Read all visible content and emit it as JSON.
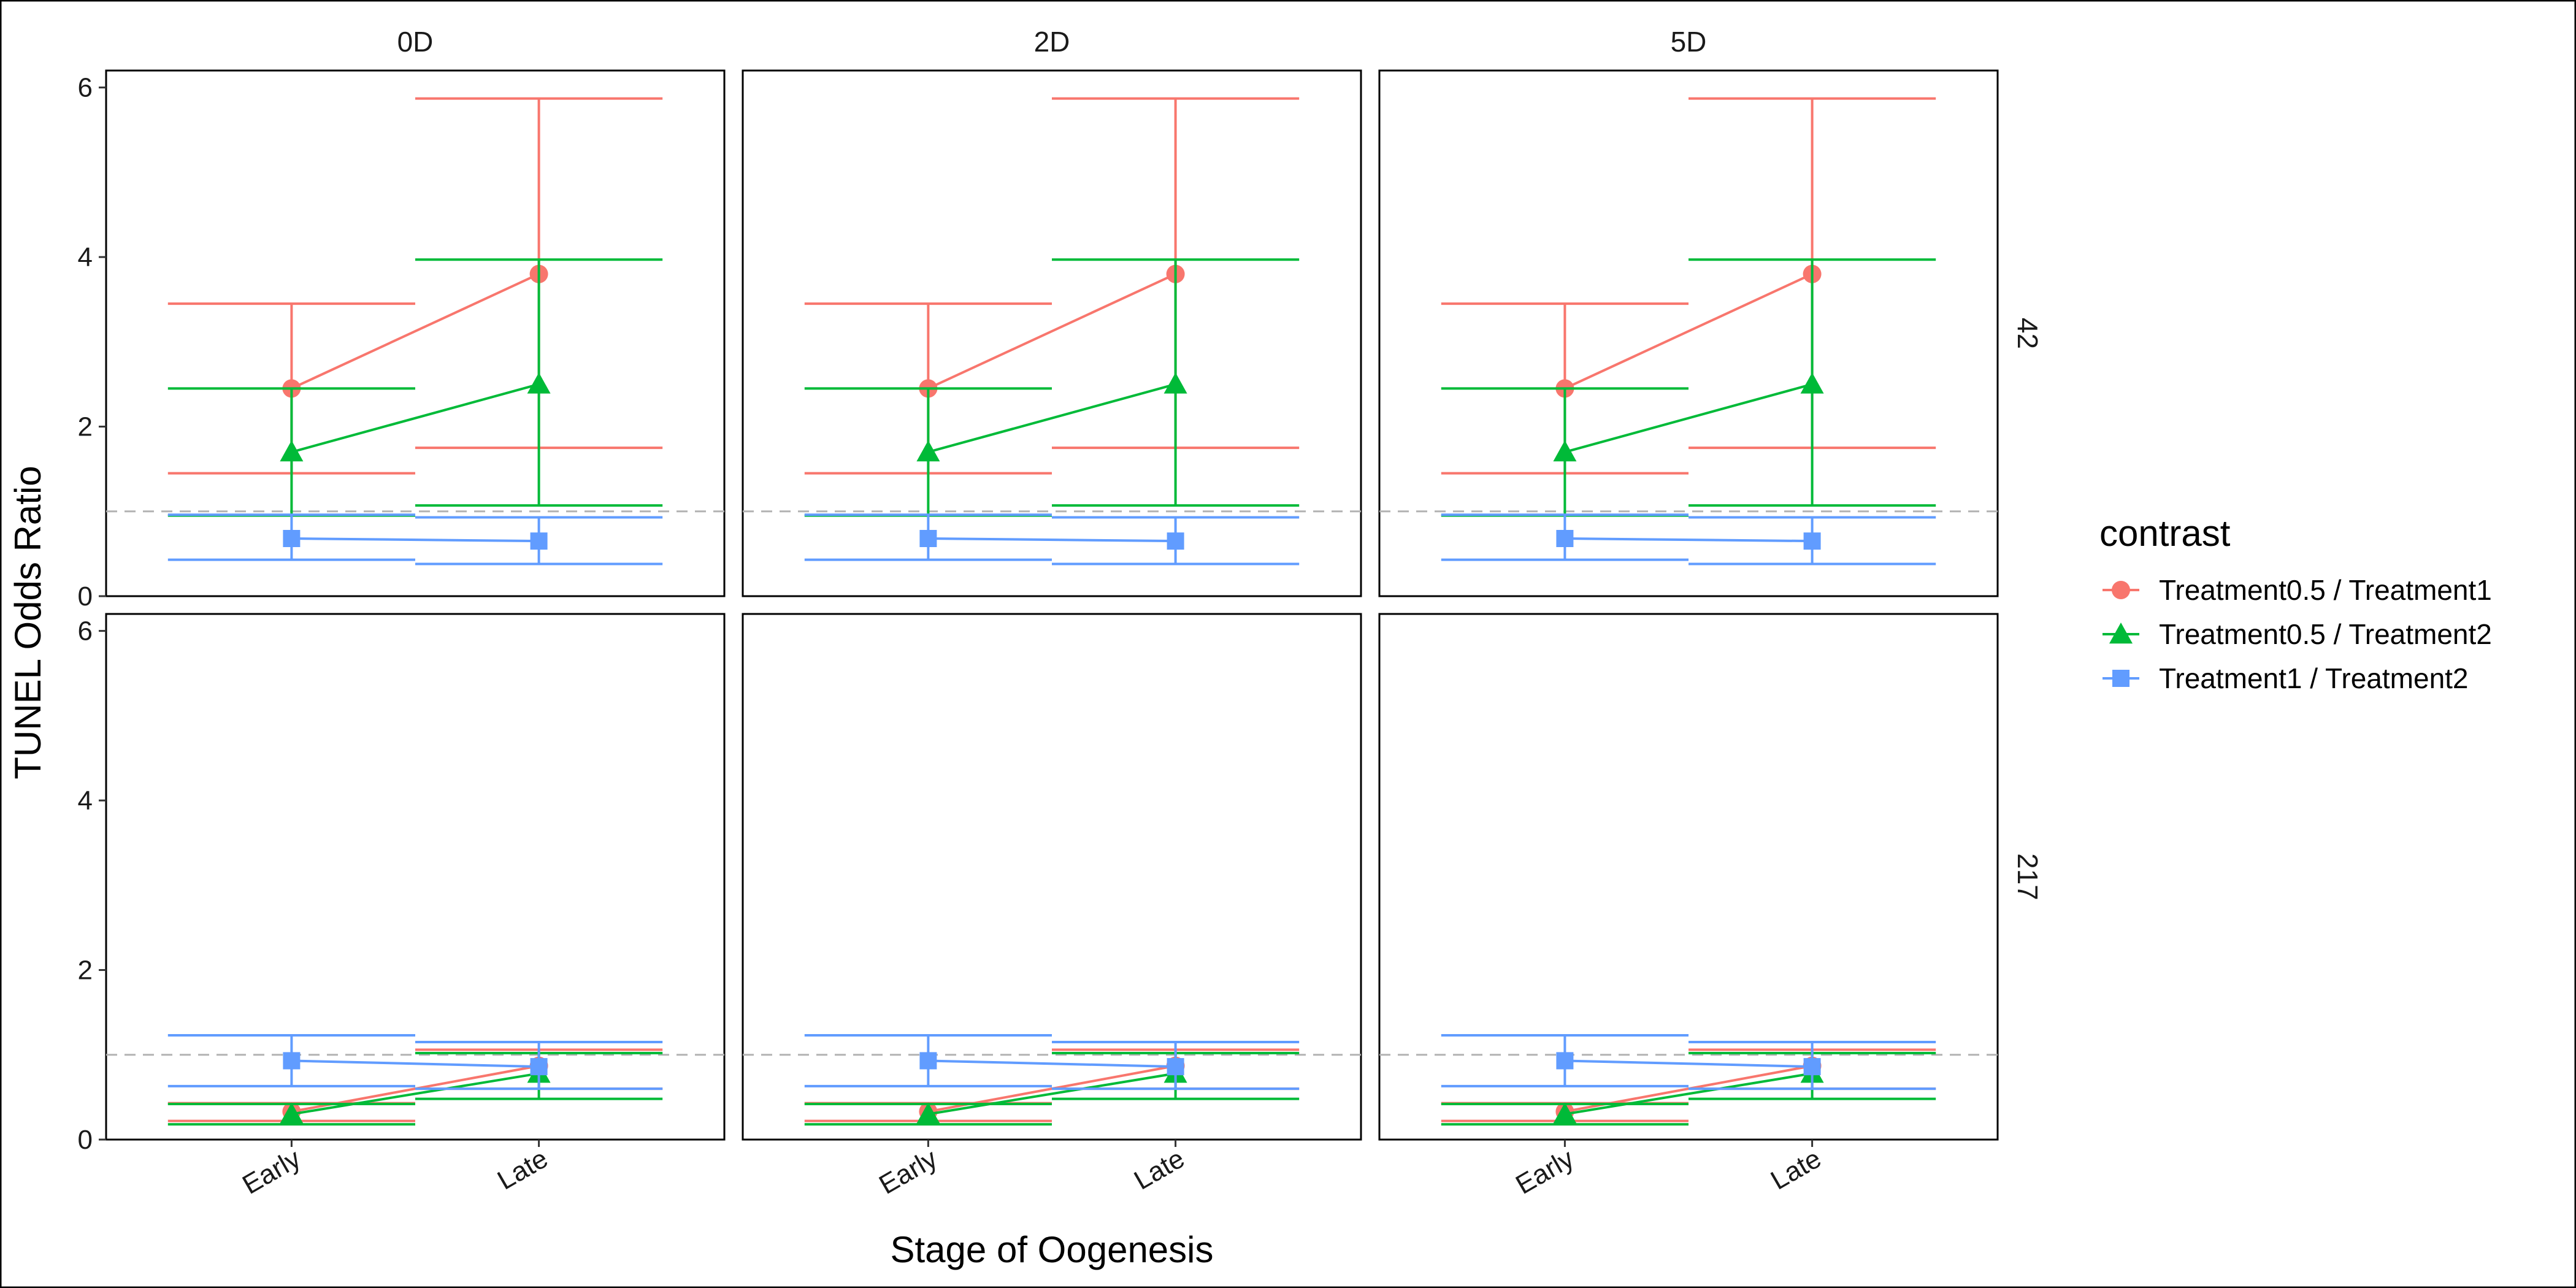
{
  "chart_data": {
    "type": "line",
    "title": "",
    "xlabel": "Stage of Oogenesis",
    "ylabel": "TUNEL Odds Ratio",
    "categories": [
      "Early",
      "Late"
    ],
    "ylim": [
      0,
      6.2
    ],
    "yticks": [
      "0",
      "2",
      "4",
      "6"
    ],
    "reference_line": 1,
    "facet_columns": [
      "0D",
      "2D",
      "5D"
    ],
    "facet_rows": [
      "42",
      "217"
    ],
    "legend": {
      "title": "contrast",
      "placement": "right",
      "entries": [
        {
          "name": "Treatment0.5 / Treatment1",
          "color": "#F8766D",
          "shape": "circle"
        },
        {
          "name": "Treatment0.5 / Treatment2",
          "color": "#00BA38",
          "shape": "triangle"
        },
        {
          "name": "Treatment1 / Treatment2",
          "color": "#619CFF",
          "shape": "square"
        }
      ]
    },
    "rows": [
      {
        "row": "42",
        "series": [
          {
            "name": "Treatment0.5 / Treatment1",
            "values": [
              2.45,
              3.8
            ],
            "lower": [
              1.45,
              1.75
            ],
            "upper": [
              3.45,
              5.87
            ]
          },
          {
            "name": "Treatment0.5 / Treatment2",
            "values": [
              1.7,
              2.5
            ],
            "lower": [
              0.95,
              1.07
            ],
            "upper": [
              2.45,
              3.97
            ]
          },
          {
            "name": "Treatment1 / Treatment2",
            "values": [
              0.68,
              0.65
            ],
            "lower": [
              0.43,
              0.38
            ],
            "upper": [
              0.96,
              0.93
            ]
          }
        ]
      },
      {
        "row": "217",
        "series": [
          {
            "name": "Treatment0.5 / Treatment1",
            "values": [
              0.33,
              0.87
            ],
            "lower": [
              0.22,
              0.6
            ],
            "upper": [
              0.43,
              1.06
            ]
          },
          {
            "name": "Treatment0.5 / Treatment2",
            "values": [
              0.3,
              0.78
            ],
            "lower": [
              0.18,
              0.48
            ],
            "upper": [
              0.42,
              1.02
            ]
          },
          {
            "name": "Treatment1 / Treatment2",
            "values": [
              0.93,
              0.86
            ],
            "lower": [
              0.63,
              0.6
            ],
            "upper": [
              1.23,
              1.15
            ]
          }
        ]
      }
    ]
  }
}
